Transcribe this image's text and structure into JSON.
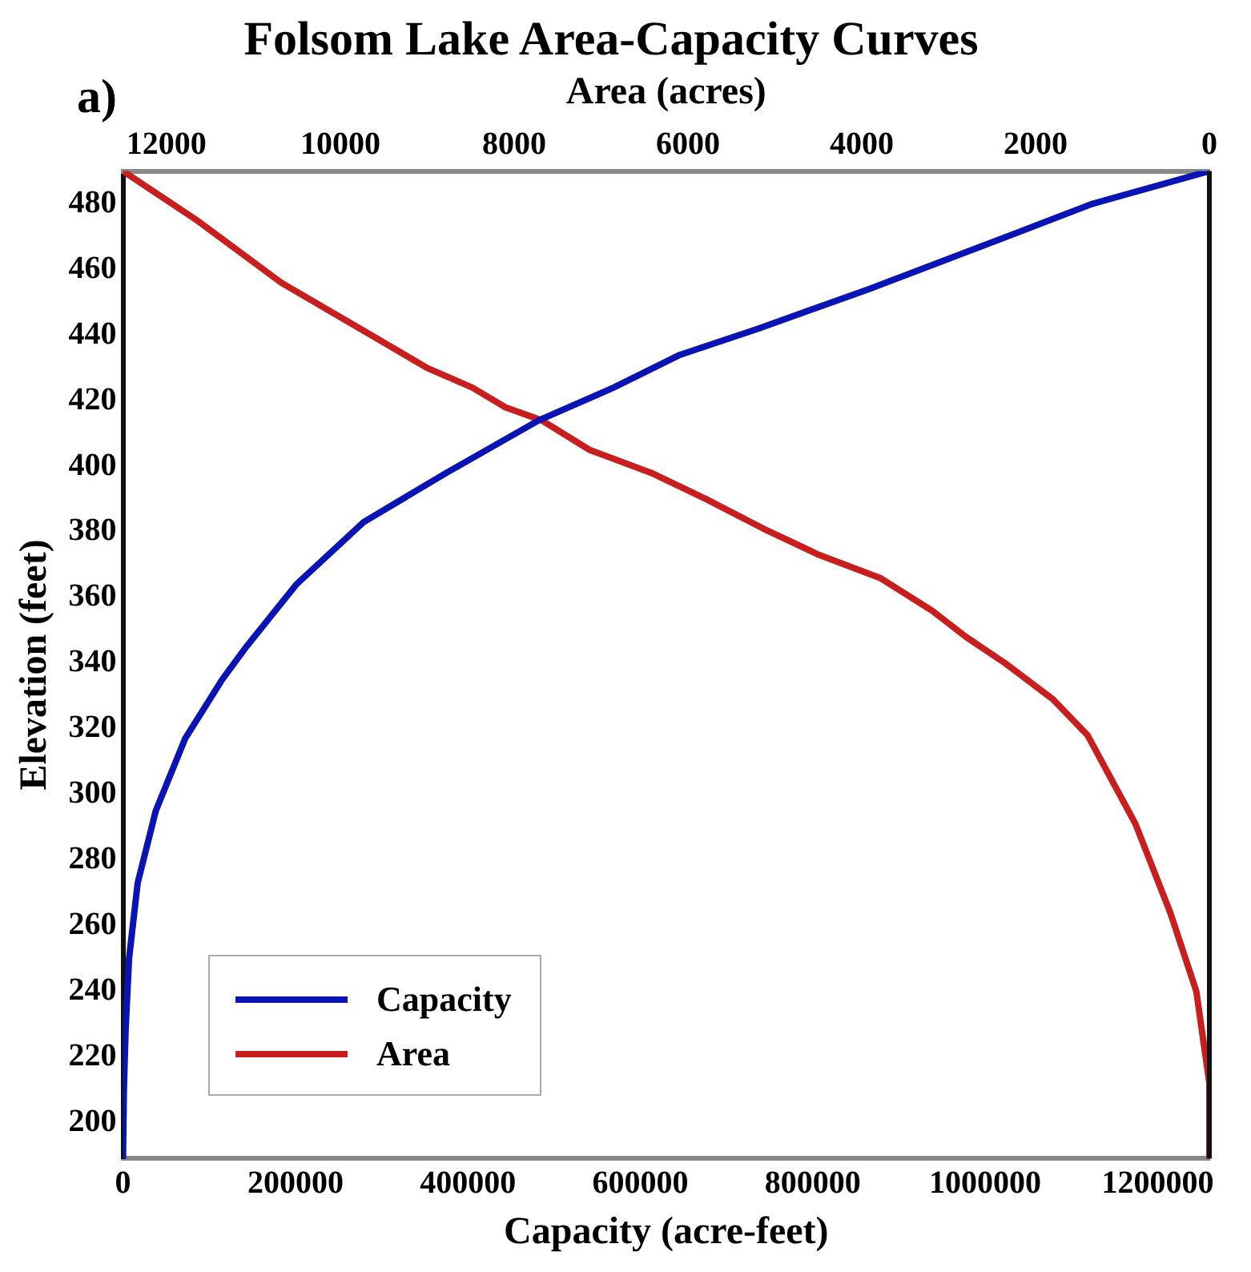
{
  "chart_data": {
    "type": "line",
    "title": "Folsom Lake Area-Capacity Curves",
    "xlabel": "Capacity (acre-feet)",
    "x2label": "Area (acres)",
    "ylabel": "Elevation (feet)",
    "annotations": [
      "a)"
    ],
    "xlim": [
      0,
      1260000
    ],
    "xticks": [
      0,
      200000,
      400000,
      600000,
      800000,
      1000000,
      1200000
    ],
    "x2lim": [
      12500,
      0
    ],
    "x2ticks": [
      12000,
      10000,
      8000,
      6000,
      4000,
      2000,
      0
    ],
    "ylim": [
      189,
      490
    ],
    "yticks": [
      200,
      220,
      240,
      260,
      280,
      300,
      320,
      340,
      360,
      380,
      400,
      420,
      440,
      460,
      480
    ],
    "grid": false,
    "legend": "bottom left",
    "marker": "none",
    "line_style": "solid",
    "series": [
      {
        "name": "Capacity",
        "color": "#0a14b4",
        "x": [
          0,
          1000,
          3000,
          7000,
          17000,
          38000,
          72000,
          115000,
          143000,
          201000,
          279000,
          375000,
          482000,
          569000,
          646000,
          737000,
          865000,
          995000,
          1124000,
          1260000
        ],
        "values": [
          189,
          210,
          228,
          250,
          273,
          295,
          317,
          335,
          345,
          364,
          383,
          398,
          414,
          424,
          434,
          442,
          454,
          467,
          480,
          490
        ]
      },
      {
        "name": "Area",
        "color": "#c81e1e",
        "axis": "x2",
        "x": [
          0,
          0,
          150,
          450,
          850,
          1400,
          1800,
          2350,
          2800,
          3190,
          3790,
          4490,
          5130,
          5790,
          6420,
          7130,
          7680,
          8100,
          8480,
          9000,
          9710,
          10680,
          11650,
          12500
        ],
        "values": [
          189,
          212,
          240,
          264,
          291,
          318,
          329,
          340,
          348,
          356,
          366,
          373,
          381,
          390,
          398,
          405,
          414,
          418,
          424,
          430,
          441,
          456,
          475,
          490
        ]
      }
    ]
  }
}
